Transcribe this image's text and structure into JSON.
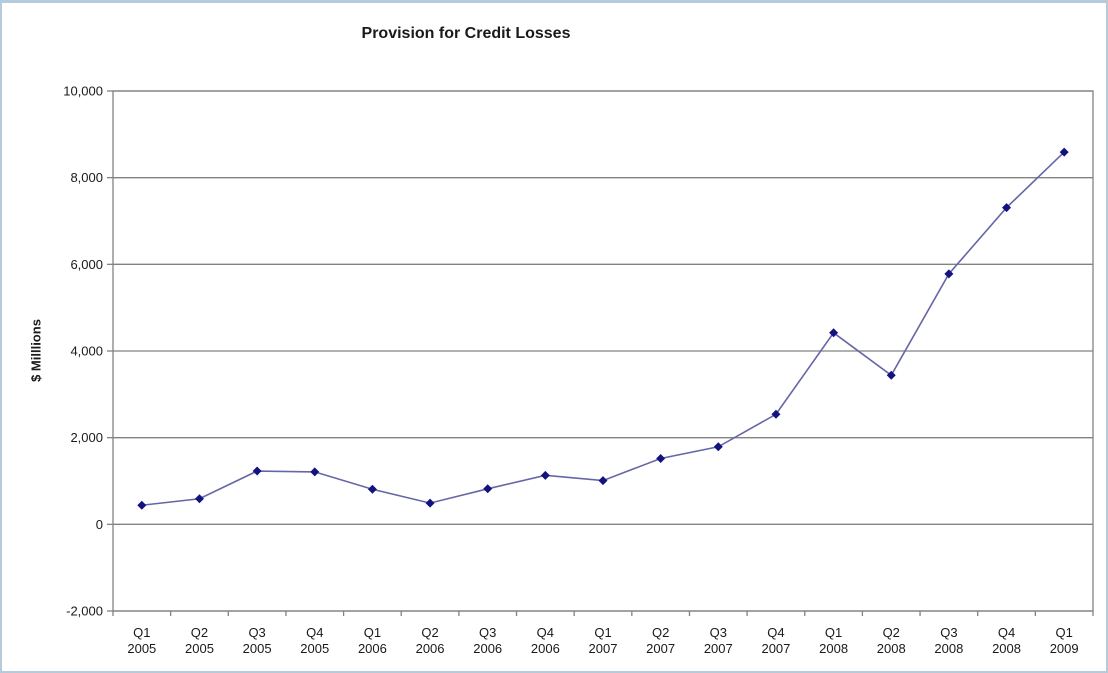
{
  "page": {
    "background_color": "#ffffff",
    "frame_border_color": "#b5cadb"
  },
  "chart_data": {
    "type": "line",
    "title": "Provision for Credit Losses",
    "ylabel": "$ Milllions",
    "xlabel": "",
    "categories": [
      "Q1 2005",
      "Q2 2005",
      "Q3 2005",
      "Q4 2005",
      "Q1 2006",
      "Q2 2006",
      "Q3 2006",
      "Q4 2006",
      "Q1 2007",
      "Q2 2007",
      "Q3 2007",
      "Q4 2007",
      "Q1 2008",
      "Q2 2008",
      "Q3 2008",
      "Q4 2008",
      "Q1 2009"
    ],
    "values": [
      440,
      590,
      1230,
      1210,
      810,
      490,
      820,
      1130,
      1010,
      1520,
      1790,
      2540,
      4420,
      3440,
      5780,
      7310,
      8590
    ],
    "ylim": [
      -2000,
      10000
    ],
    "ytick_interval": 2000,
    "ytick_labels": [
      "-2,000",
      "0",
      "2,000",
      "4,000",
      "6,000",
      "8,000",
      "10,000"
    ],
    "grid": true,
    "legend": "none",
    "line_color": "#6666a6",
    "marker_color": "#131380",
    "marker_shape": "diamond",
    "gridline_color": "#828282",
    "axis_color": "#828282"
  }
}
